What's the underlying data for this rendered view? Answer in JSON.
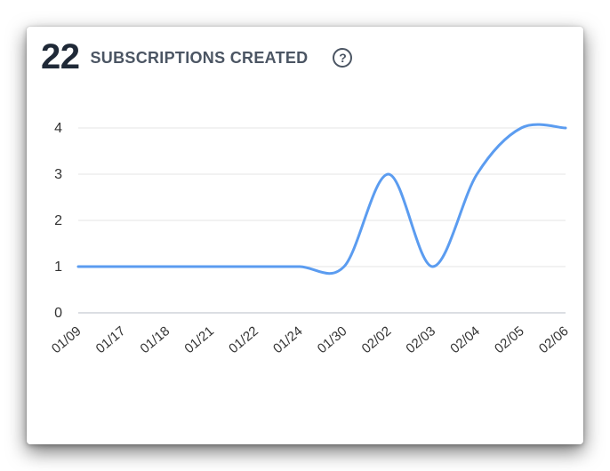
{
  "header": {
    "metric_value": "22",
    "metric_label": "SUBSCRIPTIONS CREATED",
    "help_icon": "question-circle-icon"
  },
  "colors": {
    "line": "#5b9cf0",
    "grid": "#e6e6e6",
    "axis": "#cfd3da",
    "text": "#333333"
  },
  "chart_data": {
    "type": "line",
    "title": "",
    "xlabel": "",
    "ylabel": "",
    "ylim": [
      0,
      4
    ],
    "y_ticks": [
      0,
      1,
      2,
      3,
      4
    ],
    "grid": true,
    "categories": [
      "01/09",
      "01/17",
      "01/18",
      "01/21",
      "01/22",
      "01/24",
      "01/30",
      "02/02",
      "02/03",
      "02/04",
      "02/05",
      "02/06"
    ],
    "series": [
      {
        "values": [
          1,
          1,
          1,
          1,
          1,
          1,
          1,
          3,
          1,
          3,
          4,
          4
        ]
      }
    ]
  }
}
